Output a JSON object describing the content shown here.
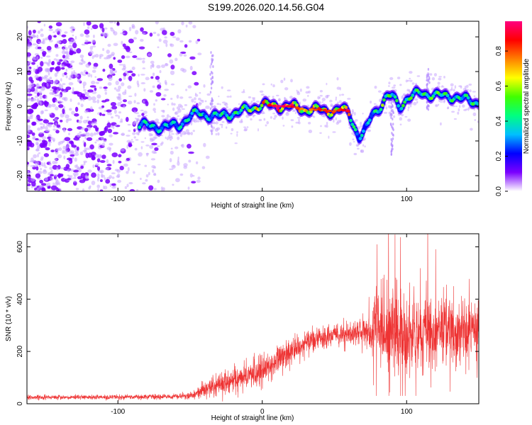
{
  "page_title": "S199.2026.020.14.56.G04",
  "chart_data": [
    {
      "type": "heatmap",
      "title": "S199.2026.020.14.56.G04",
      "xlabel": "Height of straight line (km)",
      "ylabel": "Frequency (Hz)",
      "xlim": [
        -163,
        150
      ],
      "ylim": [
        -24.5,
        24.5
      ],
      "x_ticks": [
        -100,
        0,
        100
      ],
      "y_ticks": [
        -20,
        -10,
        0,
        10,
        20
      ],
      "colorbar": {
        "label": "Normalized spectral amplitude",
        "range": [
          0,
          0.97
        ],
        "ticks": [
          "0.0",
          "0.2",
          "0.4",
          "0.6",
          "0.8"
        ],
        "tick_values": [
          0,
          0.2,
          0.4,
          0.6,
          0.8
        ],
        "colors": [
          "#ffffff",
          "#7b00ff",
          "#0000ff",
          "#00bfff",
          "#00ff80",
          "#40ff00",
          "#ffff00",
          "#ff8000",
          "#ff0000",
          "#ff0080"
        ]
      },
      "noise_region_x": [
        -163,
        -45
      ],
      "signal_track": {
        "x": [
          -85,
          -70,
          -58,
          -50,
          -45,
          -38,
          -30,
          -20,
          -10,
          0,
          10,
          20,
          30,
          40,
          50,
          55,
          60,
          63,
          67,
          70,
          73,
          76,
          80,
          85,
          90,
          95,
          100,
          110,
          120,
          130,
          140,
          150
        ],
        "freq": [
          -5.5,
          -6,
          -5.5,
          -3,
          -2,
          -2.5,
          -3,
          -2,
          -1,
          0.5,
          0,
          0,
          -1,
          -1,
          -1.5,
          -1,
          -1.5,
          -5,
          -9,
          -8,
          -6,
          -2,
          -1,
          2,
          3,
          0,
          2,
          4,
          3,
          3,
          2,
          1
        ],
        "amplitude": [
          0.45,
          0.4,
          0.4,
          0.45,
          0.5,
          0.4,
          0.45,
          0.5,
          0.55,
          0.8,
          0.95,
          0.9,
          0.7,
          0.85,
          0.8,
          0.85,
          0.9,
          0.5,
          0.35,
          0.4,
          0.35,
          0.4,
          0.5,
          0.6,
          0.5,
          0.45,
          0.55,
          0.5,
          0.55,
          0.5,
          0.45,
          0.55
        ]
      }
    },
    {
      "type": "line",
      "title": "",
      "xlabel": "Height of straight line (km)",
      "ylabel": "SNR (10 * v/v)",
      "xlim": [
        -163,
        150
      ],
      "ylim": [
        0,
        650
      ],
      "x_ticks": [
        -100,
        0,
        100
      ],
      "y_ticks": [
        0,
        200,
        400,
        600
      ],
      "color": "#ee3333",
      "series": [
        {
          "name": "SNR",
          "x": [
            -163,
            -140,
            -120,
            -100,
            -80,
            -60,
            -50,
            -45,
            -40,
            -35,
            -30,
            -25,
            -20,
            -15,
            -10,
            -5,
            0,
            5,
            10,
            20,
            30,
            40,
            50,
            60,
            65,
            70,
            75,
            78,
            85,
            90,
            95,
            100,
            110,
            120,
            130,
            140,
            150
          ],
          "mean": [
            25,
            25,
            25,
            25,
            27,
            28,
            30,
            40,
            55,
            65,
            75,
            80,
            95,
            100,
            110,
            120,
            130,
            145,
            170,
            200,
            240,
            250,
            260,
            270,
            275,
            275,
            270,
            300,
            280,
            270,
            260,
            265,
            270,
            280,
            285,
            280,
            290
          ],
          "spread": [
            8,
            8,
            8,
            8,
            9,
            10,
            12,
            20,
            28,
            32,
            38,
            40,
            42,
            45,
            50,
            50,
            55,
            55,
            55,
            50,
            45,
            40,
            40,
            40,
            45,
            50,
            60,
            140,
            150,
            150,
            140,
            130,
            130,
            130,
            120,
            120,
            110
          ]
        }
      ]
    }
  ]
}
